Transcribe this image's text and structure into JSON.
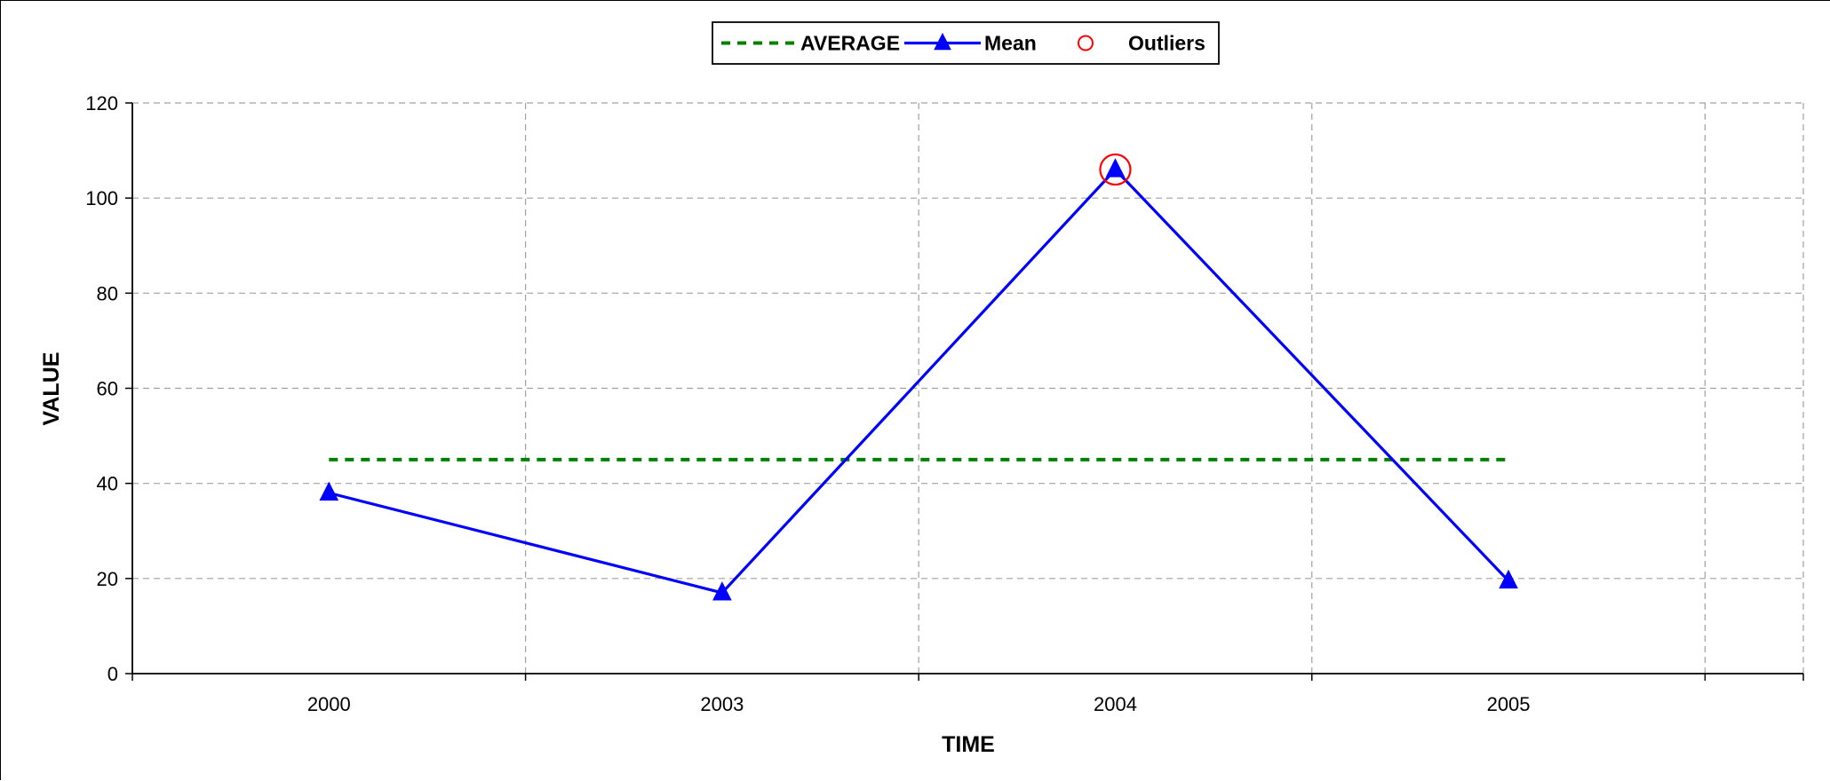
{
  "chart_data": {
    "type": "line",
    "title": "",
    "xlabel": "TIME",
    "ylabel": "VALUE",
    "categories": [
      "2000",
      "2003",
      "2004",
      "2005"
    ],
    "ylim": [
      0,
      120
    ],
    "yticks": [
      0,
      20,
      40,
      60,
      80,
      100,
      120
    ],
    "grid": true,
    "legend_position": "top",
    "series": [
      {
        "name": "AVERAGE",
        "style": "dashed-line",
        "color": "#008000",
        "values": [
          45,
          45,
          45,
          45
        ]
      },
      {
        "name": "Mean",
        "style": "line-triangle-markers",
        "color": "#0000FF",
        "values": [
          38,
          17,
          106,
          19.5
        ]
      },
      {
        "name": "Outliers",
        "style": "open-circle-markers",
        "color": "#FF0000",
        "points": [
          {
            "x": "2004",
            "y": 106
          }
        ]
      }
    ]
  }
}
